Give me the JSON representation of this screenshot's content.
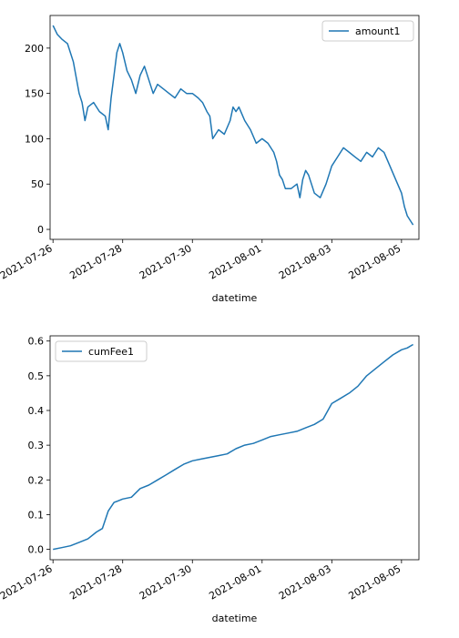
{
  "colors": {
    "line": "#1f77b4",
    "axes": "#000000",
    "legend_border": "#cccccc"
  },
  "chart_data": [
    {
      "type": "line",
      "xlabel": "datetime",
      "ylabel": "",
      "title": "",
      "xlim": [
        "2021-07-25T22:00",
        "2021-08-05T12:00"
      ],
      "ylim": [
        -11,
        236
      ],
      "grid": false,
      "legend_position": "top-right",
      "x_ticks": [
        "2021-07-26",
        "2021-07-28",
        "2021-07-30",
        "2021-08-01",
        "2021-08-03",
        "2021-08-05"
      ],
      "y_ticks": [
        0,
        50,
        100,
        150,
        200
      ],
      "series": [
        {
          "name": "amount1",
          "x": [
            "2021-07-26T00:00",
            "2021-07-26T03:00",
            "2021-07-26T06:00",
            "2021-07-26T10:00",
            "2021-07-26T14:00",
            "2021-07-26T18:00",
            "2021-07-26T20:00",
            "2021-07-26T22:00",
            "2021-07-27T00:00",
            "2021-07-27T04:00",
            "2021-07-27T08:00",
            "2021-07-27T12:00",
            "2021-07-27T14:00",
            "2021-07-27T16:00",
            "2021-07-27T18:00",
            "2021-07-27T20:00",
            "2021-07-27T22:00",
            "2021-07-28T00:00",
            "2021-07-28T03:00",
            "2021-07-28T06:00",
            "2021-07-28T09:00",
            "2021-07-28T12:00",
            "2021-07-28T15:00",
            "2021-07-28T18:00",
            "2021-07-28T21:00",
            "2021-07-29T00:00",
            "2021-07-29T04:00",
            "2021-07-29T08:00",
            "2021-07-29T12:00",
            "2021-07-29T16:00",
            "2021-07-29T20:00",
            "2021-07-30T00:00",
            "2021-07-30T04:00",
            "2021-07-30T07:00",
            "2021-07-30T10:00",
            "2021-07-30T12:00",
            "2021-07-30T14:00",
            "2021-07-30T18:00",
            "2021-07-30T22:00",
            "2021-07-31T02:00",
            "2021-07-31T04:00",
            "2021-07-31T06:00",
            "2021-07-31T08:00",
            "2021-07-31T12:00",
            "2021-07-31T16:00",
            "2021-07-31T20:00",
            "2021-08-01T00:00",
            "2021-08-01T04:00",
            "2021-08-01T08:00",
            "2021-08-01T10:00",
            "2021-08-01T12:00",
            "2021-08-01T14:00",
            "2021-08-01T16:00",
            "2021-08-01T20:00",
            "2021-08-02T00:00",
            "2021-08-02T02:00",
            "2021-08-02T04:00",
            "2021-08-02T06:00",
            "2021-08-02T08:00",
            "2021-08-02T10:00",
            "2021-08-02T12:00",
            "2021-08-02T16:00",
            "2021-08-02T20:00",
            "2021-08-03T00:00",
            "2021-08-03T04:00",
            "2021-08-03T08:00",
            "2021-08-03T12:00",
            "2021-08-03T16:00",
            "2021-08-03T20:00",
            "2021-08-04T00:00",
            "2021-08-04T04:00",
            "2021-08-04T08:00",
            "2021-08-04T12:00",
            "2021-08-04T16:00",
            "2021-08-04T20:00",
            "2021-08-05T00:00",
            "2021-08-05T02:00",
            "2021-08-05T04:00",
            "2021-08-05T06:00",
            "2021-08-05T08:00"
          ],
          "values": [
            225,
            215,
            210,
            205,
            185,
            150,
            140,
            120,
            135,
            140,
            130,
            125,
            110,
            145,
            170,
            195,
            205,
            195,
            175,
            165,
            150,
            170,
            180,
            165,
            150,
            160,
            155,
            150,
            145,
            155,
            150,
            150,
            145,
            140,
            130,
            125,
            100,
            110,
            105,
            120,
            135,
            130,
            135,
            120,
            110,
            95,
            100,
            95,
            85,
            75,
            60,
            55,
            45,
            45,
            50,
            35,
            55,
            65,
            60,
            50,
            40,
            35,
            50,
            70,
            80,
            90,
            85,
            80,
            75,
            85,
            80,
            90,
            85,
            70,
            55,
            40,
            25,
            15,
            10,
            5
          ]
        }
      ]
    },
    {
      "type": "line",
      "xlabel": "datetime",
      "ylabel": "",
      "title": "",
      "xlim": [
        "2021-07-25T22:00",
        "2021-08-05T12:00"
      ],
      "ylim": [
        -0.03,
        0.615
      ],
      "grid": false,
      "legend_position": "top-left",
      "x_ticks": [
        "2021-07-26",
        "2021-07-28",
        "2021-07-30",
        "2021-08-01",
        "2021-08-03",
        "2021-08-05"
      ],
      "y_ticks": [
        0.0,
        0.1,
        0.2,
        0.3,
        0.4,
        0.5,
        0.6
      ],
      "y_tick_labels": [
        "0.0",
        "0.1",
        "0.2",
        "0.3",
        "0.4",
        "0.5",
        "0.6"
      ],
      "series": [
        {
          "name": "cumFee1",
          "x": [
            "2021-07-26T00:00",
            "2021-07-26T06:00",
            "2021-07-26T12:00",
            "2021-07-26T18:00",
            "2021-07-27T00:00",
            "2021-07-27T06:00",
            "2021-07-27T10:00",
            "2021-07-27T14:00",
            "2021-07-27T18:00",
            "2021-07-28T00:00",
            "2021-07-28T06:00",
            "2021-07-28T12:00",
            "2021-07-28T18:00",
            "2021-07-29T00:00",
            "2021-07-29T06:00",
            "2021-07-29T12:00",
            "2021-07-29T18:00",
            "2021-07-30T00:00",
            "2021-07-30T06:00",
            "2021-07-30T12:00",
            "2021-07-30T18:00",
            "2021-07-31T00:00",
            "2021-07-31T06:00",
            "2021-07-31T12:00",
            "2021-07-31T18:00",
            "2021-08-01T00:00",
            "2021-08-01T06:00",
            "2021-08-01T12:00",
            "2021-08-01T18:00",
            "2021-08-02T00:00",
            "2021-08-02T06:00",
            "2021-08-02T12:00",
            "2021-08-02T18:00",
            "2021-08-03T00:00",
            "2021-08-03T06:00",
            "2021-08-03T12:00",
            "2021-08-03T18:00",
            "2021-08-04T00:00",
            "2021-08-04T06:00",
            "2021-08-04T12:00",
            "2021-08-04T18:00",
            "2021-08-05T00:00",
            "2021-08-05T04:00",
            "2021-08-05T08:00"
          ],
          "values": [
            0.0,
            0.005,
            0.01,
            0.02,
            0.03,
            0.05,
            0.06,
            0.11,
            0.135,
            0.145,
            0.15,
            0.175,
            0.185,
            0.2,
            0.215,
            0.23,
            0.245,
            0.255,
            0.26,
            0.265,
            0.27,
            0.275,
            0.29,
            0.3,
            0.305,
            0.315,
            0.325,
            0.33,
            0.335,
            0.34,
            0.35,
            0.36,
            0.375,
            0.42,
            0.435,
            0.45,
            0.47,
            0.5,
            0.52,
            0.54,
            0.56,
            0.575,
            0.58,
            0.59
          ]
        }
      ]
    }
  ]
}
